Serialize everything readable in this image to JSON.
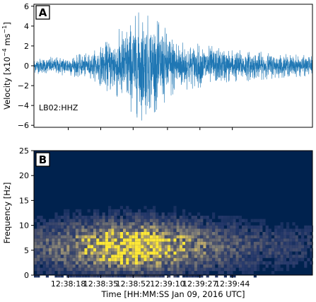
{
  "chart_data": [
    {
      "type": "line",
      "panel": "A",
      "ylabel": "Velocity [x10",
      "ylabel_exp": "−4",
      "ylabel_unit": " ms",
      "ylabel_unit_exp": "−1",
      "ylabel_end": "]",
      "annotation": "LB02:HHZ",
      "ylim": [
        -6.2,
        6.2
      ],
      "yticks": [
        -6,
        -4,
        -2,
        0,
        2,
        4,
        6
      ],
      "ytick_labels": [
        "−6",
        "−4",
        "−2",
        "0",
        "2",
        "4",
        "6"
      ],
      "series": [
        {
          "envelope_time_s": [
            0,
            10,
            20,
            30,
            38,
            44,
            48,
            52,
            56,
            60,
            64,
            68,
            72,
            76,
            80,
            90,
            100,
            110,
            120,
            130,
            140,
            146
          ],
          "envelope_amplitude": [
            0.8,
            0.9,
            1.1,
            1.3,
            2.5,
            3.6,
            4.2,
            4.8,
            5.6,
            5.0,
            4.6,
            4.0,
            3.4,
            2.8,
            2.4,
            2.1,
            1.8,
            1.6,
            1.4,
            1.2,
            1.1,
            1.0
          ],
          "color": "#1f77b4"
        }
      ]
    },
    {
      "type": "heatmap",
      "panel": "B",
      "xlabel": "Time [HH:MM:SS Jan 09, 2016 UTC]",
      "ylabel": "Frequency [Hz]",
      "ylim": [
        0,
        25
      ],
      "yticks": [
        0,
        5,
        10,
        15,
        20,
        25
      ],
      "ytick_labels": [
        "0",
        "5",
        "10",
        "15",
        "20",
        "25"
      ],
      "xtick_labels": [
        "12:38:18",
        "12:38:35",
        "12:38:52",
        "12:39:10",
        "12:39:27",
        "12:39:44"
      ],
      "xtick_times_s": [
        18,
        35,
        52,
        70,
        87,
        104
      ],
      "time_range_s": [
        0,
        146
      ],
      "colormap": "cividis",
      "energy_peak": {
        "time_s": 52,
        "frequency_hz": 6,
        "note_time_spread_s": 18,
        "note_freq_spread_hz": 3.5
      }
    }
  ]
}
